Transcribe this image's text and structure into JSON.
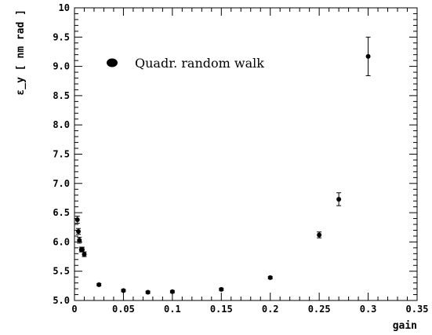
{
  "chart_data": {
    "type": "scatter",
    "title": "",
    "xlabel": "gain",
    "ylabel": "ε_y  [ nm rad ]",
    "xlim": [
      0,
      0.35
    ],
    "ylim": [
      5.0,
      10.0
    ],
    "x_ticks": [
      0,
      0.05,
      0.1,
      0.15,
      0.2,
      0.25,
      0.3,
      0.35
    ],
    "x_tick_labels": [
      "0",
      "0.05",
      "0.1",
      "0.15",
      "0.2",
      "0.25",
      "0.3",
      "0.35"
    ],
    "y_ticks": [
      5.0,
      5.5,
      6.0,
      6.5,
      7.0,
      7.5,
      8.0,
      8.5,
      9.0,
      9.5,
      10.0
    ],
    "y_tick_labels": [
      "5.0",
      "5.5",
      "6.0",
      "6.5",
      "7.0",
      "7.5",
      "8.0",
      "8.5",
      "9.0",
      "9.5",
      "10"
    ],
    "grid": false,
    "legend_position": "top-left",
    "series": [
      {
        "name": "Quadr. random walk",
        "marker": "filled-circle",
        "color": "#000000",
        "x": [
          0.003,
          0.004,
          0.005,
          0.007,
          0.008,
          0.01,
          0.025,
          0.05,
          0.075,
          0.1,
          0.15,
          0.2,
          0.25,
          0.27,
          0.3
        ],
        "y": [
          6.38,
          6.18,
          6.03,
          5.87,
          5.87,
          5.79,
          5.27,
          5.17,
          5.14,
          5.15,
          5.19,
          5.39,
          6.12,
          6.73,
          9.17
        ],
        "y_error": [
          0.06,
          0.05,
          0.05,
          0.04,
          0.04,
          0.04,
          0.02,
          0.02,
          0.02,
          0.02,
          0.02,
          0.02,
          0.05,
          0.11,
          0.33
        ]
      }
    ]
  }
}
